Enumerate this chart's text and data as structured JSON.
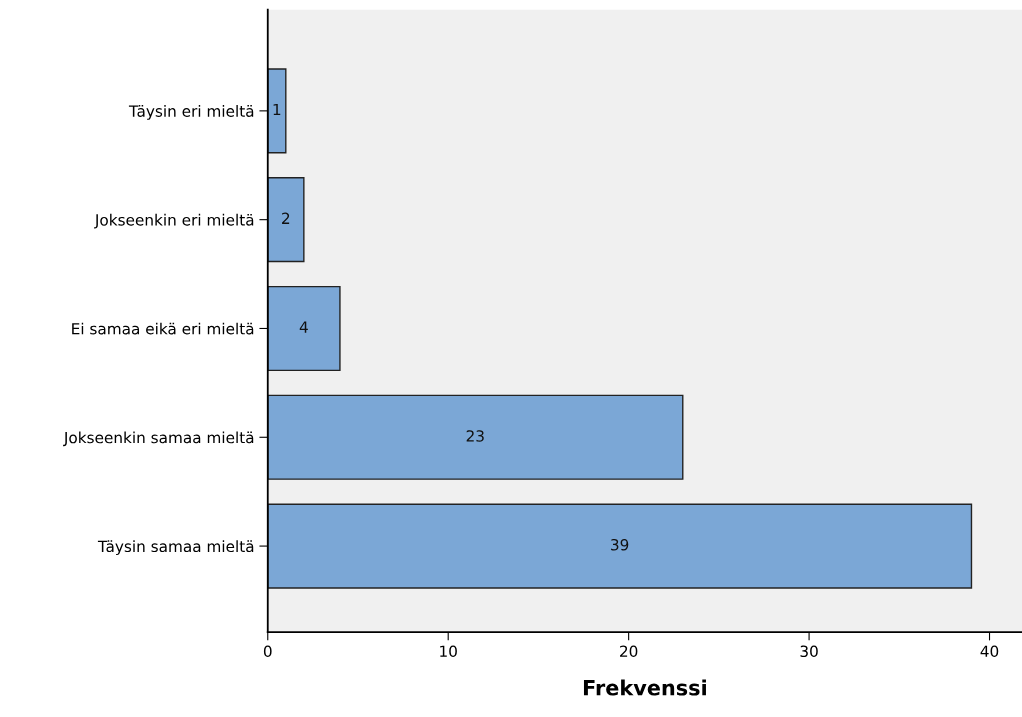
{
  "chart_data": {
    "type": "bar",
    "orientation": "horizontal",
    "xlabel": "Frekvenssi",
    "categories": [
      "Täysin eri mieltä",
      "Jokseenkin eri mieltä",
      "Ei samaa eikä eri mieltä",
      "Jokseenkin samaa mieltä",
      "Täysin samaa mieltä"
    ],
    "values": [
      1,
      2,
      4,
      23,
      39
    ],
    "color": "#7ba7d6",
    "xlim": [
      0,
      41.8
    ],
    "xticks": [
      0,
      10,
      20,
      30,
      40
    ],
    "grid": false,
    "data_labels": true
  }
}
